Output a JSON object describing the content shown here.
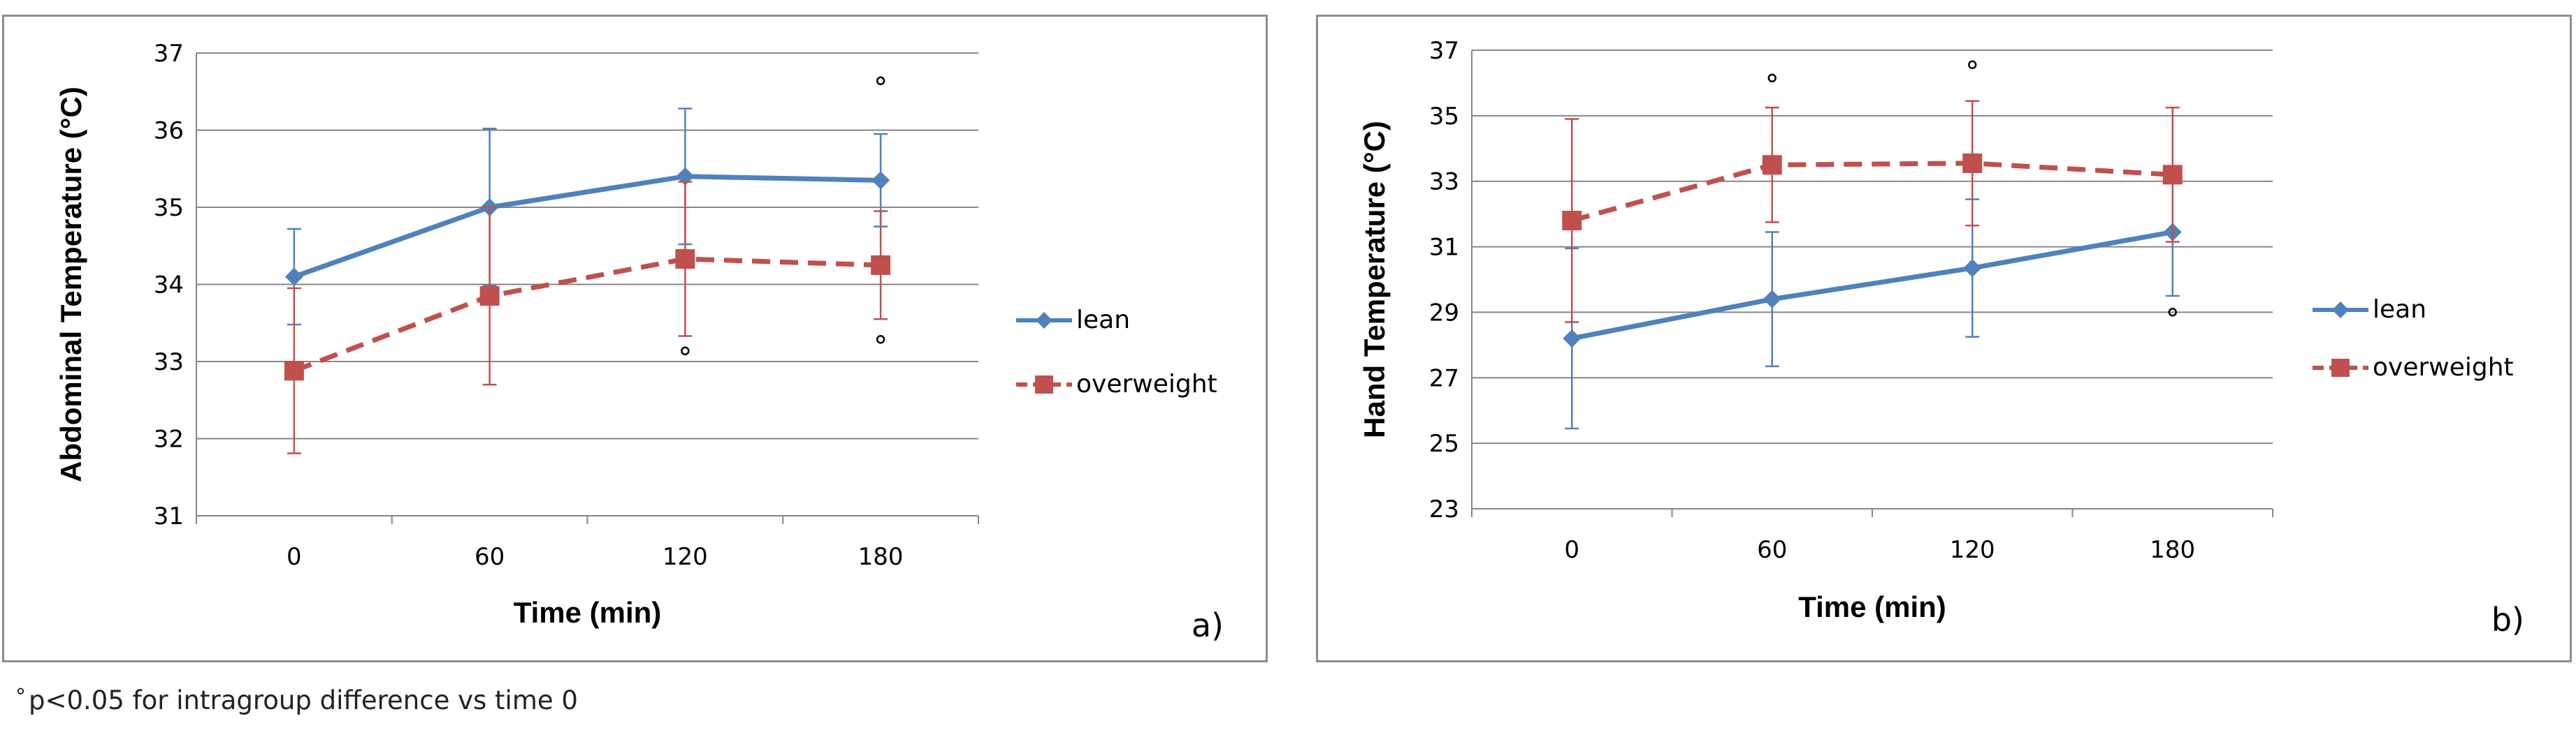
{
  "footnote": {
    "symbol": "°",
    "text": "p<0.05 for intragroup difference vs time 0"
  },
  "colors": {
    "lean": "#4F81BD",
    "overweight": "#C0504D",
    "grid": "#868686",
    "border": "#8c8c8c",
    "text": "#000000"
  },
  "chart_data": [
    {
      "type": "line",
      "panel_label": "a)",
      "title": "",
      "xlabel": "Time (min)",
      "ylabel": "Abdominal Temperature (°C)",
      "categories": [
        "0",
        "60",
        "120",
        "180"
      ],
      "ylim": [
        31,
        37
      ],
      "yticks": [
        31,
        32,
        33,
        34,
        35,
        36,
        37
      ],
      "grid": true,
      "legend_position": "right",
      "series": [
        {
          "name": "lean",
          "values": [
            34.1,
            35.0,
            35.4,
            35.35
          ],
          "error": [
            0.62,
            1.02,
            0.88,
            0.6
          ],
          "line_style": "solid",
          "marker": "diamond"
        },
        {
          "name": "overweight",
          "values": [
            32.88,
            33.85,
            34.33,
            34.25
          ],
          "error": [
            1.07,
            1.15,
            1.0,
            0.7
          ],
          "line_style": "dashed",
          "marker": "square"
        }
      ],
      "significance_markers": [
        {
          "symbol": "°",
          "category": "120",
          "y": 33.05
        },
        {
          "symbol": "°",
          "category": "180",
          "y": 36.55
        },
        {
          "symbol": "°",
          "category": "180",
          "y": 33.2
        }
      ]
    },
    {
      "type": "line",
      "panel_label": "b)",
      "title": "",
      "xlabel": "Time (min)",
      "ylabel": "Hand Temperature (°C)",
      "categories": [
        "0",
        "60",
        "120",
        "180"
      ],
      "ylim": [
        23,
        37
      ],
      "yticks": [
        23,
        25,
        27,
        29,
        31,
        33,
        35,
        37
      ],
      "grid": true,
      "legend_position": "right",
      "series": [
        {
          "name": "lean",
          "values": [
            28.2,
            29.4,
            30.35,
            31.45
          ],
          "error": [
            2.75,
            2.05,
            2.1,
            1.95
          ],
          "line_style": "solid",
          "marker": "diamond"
        },
        {
          "name": "overweight",
          "values": [
            31.8,
            33.5,
            33.55,
            33.2
          ],
          "error": [
            3.1,
            1.75,
            1.9,
            2.05
          ],
          "line_style": "dashed",
          "marker": "square"
        }
      ],
      "significance_markers": [
        {
          "symbol": "°",
          "category": "60",
          "y": 35.95
        },
        {
          "symbol": "°",
          "category": "120",
          "y": 36.35
        },
        {
          "symbol": "°",
          "category": "180",
          "y": 28.8
        }
      ]
    }
  ]
}
